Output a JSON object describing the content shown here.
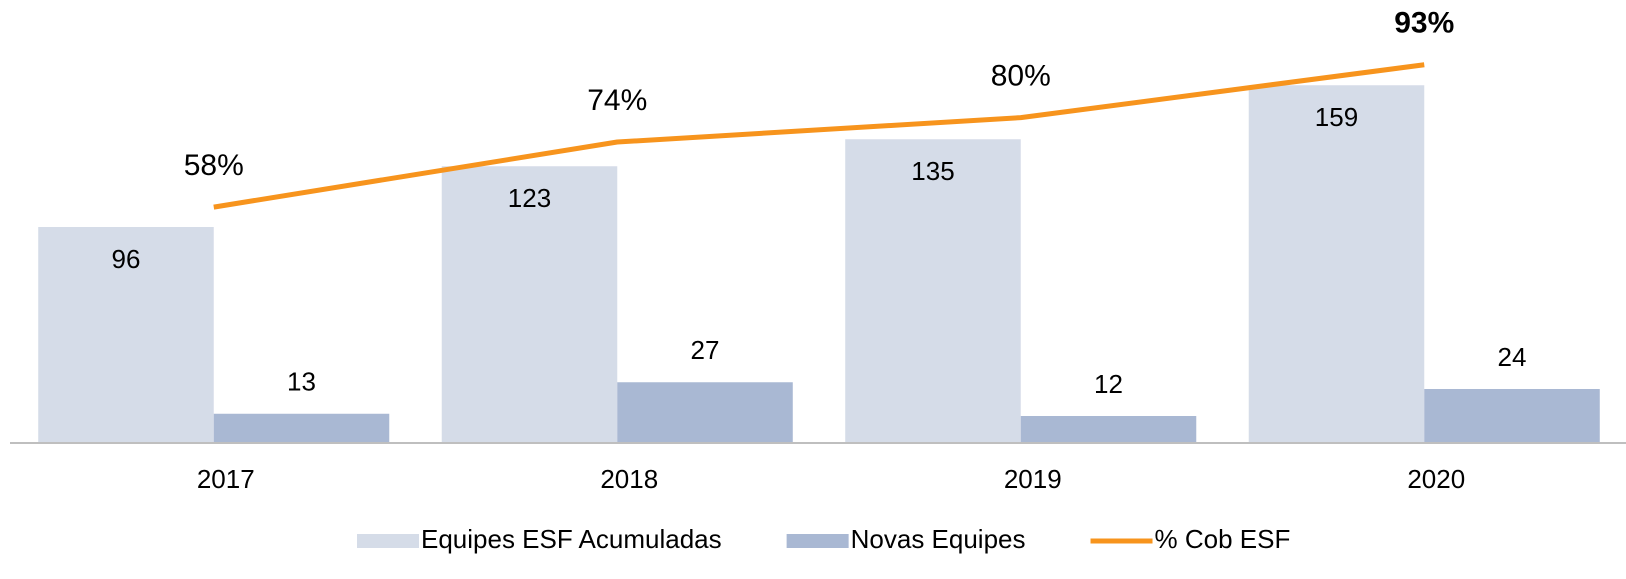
{
  "chart_data": {
    "type": "bar-line",
    "categories": [
      "2017",
      "2018",
      "2019",
      "2020"
    ],
    "series": [
      {
        "name": "Equipes ESF Acumuladas",
        "color": "#d5dce8",
        "type": "bar",
        "values": [
          96,
          123,
          135,
          159
        ]
      },
      {
        "name": "Novas Equipes",
        "color": "#a9b8d3",
        "type": "bar",
        "values": [
          13,
          27,
          12,
          24
        ]
      },
      {
        "name": "% Cob ESF",
        "color": "#f7941d",
        "type": "line",
        "axis": "y2",
        "values": [
          58,
          74,
          80,
          93
        ],
        "value_labels": [
          "58%",
          "74%",
          "80%",
          "93%"
        ],
        "value_label_bold": [
          false,
          false,
          false,
          true
        ]
      }
    ],
    "ylim": [
      0,
      188
    ],
    "y2lim": [
      0,
      104
    ],
    "legend": "bottom"
  }
}
